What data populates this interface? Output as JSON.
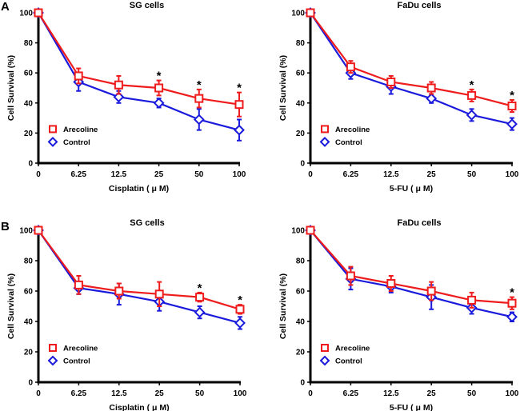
{
  "panel_letters": [
    "A",
    "B"
  ],
  "colors": {
    "arecoline": "#ee1c1c",
    "control": "#1a1adc",
    "axis": "#000000"
  },
  "chart_data": [
    {
      "id": "A-SG",
      "panel": "A",
      "type": "line",
      "title": "SG cells",
      "xlabel": "Cisplatin ( μ M)",
      "ylabel": "Cell Survival (%)",
      "categories": [
        "0",
        "6.25",
        "12.5",
        "25",
        "50",
        "100"
      ],
      "yticks": [
        0,
        20,
        40,
        60,
        80,
        100
      ],
      "ylim": [
        0,
        100
      ],
      "legend": {
        "position": "bottom-left",
        "entries": [
          "Arecoline",
          "Control"
        ]
      },
      "series": [
        {
          "name": "Arecoline",
          "marker": "square",
          "values": [
            100,
            58,
            52,
            50,
            43,
            39
          ],
          "errors": [
            0,
            5,
            6,
            5,
            6,
            8
          ]
        },
        {
          "name": "Control",
          "marker": "diamond",
          "values": [
            100,
            54,
            44,
            40,
            29,
            22
          ],
          "errors": [
            0,
            6,
            4,
            3,
            7,
            7
          ]
        }
      ],
      "significance": [
        3,
        4,
        5
      ]
    },
    {
      "id": "A-FaDu",
      "panel": "A",
      "type": "line",
      "title": "FaDu cells",
      "xlabel": "5-FU ( μ M)",
      "ylabel": "Cell Survival (%)",
      "categories": [
        "0",
        "6.25",
        "12.5",
        "25",
        "50",
        "100"
      ],
      "yticks": [
        0,
        20,
        40,
        60,
        80,
        100
      ],
      "ylim": [
        0,
        100
      ],
      "legend": {
        "position": "bottom-left",
        "entries": [
          "Arecoline",
          "Control"
        ]
      },
      "series": [
        {
          "name": "Arecoline",
          "marker": "square",
          "values": [
            100,
            64,
            54,
            50,
            45,
            38
          ],
          "errors": [
            0,
            4,
            4,
            4,
            4,
            4
          ]
        },
        {
          "name": "Control",
          "marker": "diamond",
          "values": [
            100,
            60,
            51,
            43,
            32,
            26
          ],
          "errors": [
            0,
            4,
            5,
            3,
            4,
            4
          ]
        }
      ],
      "significance": [
        4,
        5
      ]
    },
    {
      "id": "B-SG",
      "panel": "B",
      "type": "line",
      "title": "SG cells",
      "xlabel": "Cisplatin ( μ M)",
      "ylabel": "Cell Survival (%)",
      "categories": [
        "0",
        "6.25",
        "12.5",
        "25",
        "50",
        "100"
      ],
      "yticks": [
        0,
        20,
        40,
        60,
        80,
        100
      ],
      "ylim": [
        0,
        100
      ],
      "legend": {
        "position": "bottom-left",
        "entries": [
          "Arecoline",
          "Control"
        ]
      },
      "series": [
        {
          "name": "Arecoline",
          "marker": "square",
          "values": [
            100,
            64,
            60,
            58,
            56,
            48
          ],
          "errors": [
            0,
            6,
            5,
            8,
            3,
            3
          ]
        },
        {
          "name": "Control",
          "marker": "diamond",
          "values": [
            100,
            62,
            58,
            53,
            46,
            39
          ],
          "errors": [
            0,
            4,
            7,
            6,
            4,
            4
          ]
        }
      ],
      "significance": [
        4,
        5
      ]
    },
    {
      "id": "B-FaDu",
      "panel": "B",
      "type": "line",
      "title": "FaDu cells",
      "xlabel": "5-FU ( μ M)",
      "ylabel": "Cell Survival (%)",
      "categories": [
        "0",
        "6.25",
        "12.5",
        "25",
        "50",
        "100"
      ],
      "yticks": [
        0,
        20,
        40,
        60,
        80,
        100
      ],
      "ylim": [
        0,
        100
      ],
      "legend": {
        "position": "bottom-left",
        "entries": [
          "Arecoline",
          "Control"
        ]
      },
      "series": [
        {
          "name": "Arecoline",
          "marker": "square",
          "values": [
            100,
            70,
            65,
            60,
            54,
            52
          ],
          "errors": [
            0,
            6,
            5,
            6,
            5,
            4
          ]
        },
        {
          "name": "Control",
          "marker": "diamond",
          "values": [
            100,
            68,
            63,
            56,
            49,
            43
          ],
          "errors": [
            0,
            7,
            4,
            8,
            4,
            3
          ]
        }
      ],
      "significance": [
        5
      ]
    }
  ]
}
